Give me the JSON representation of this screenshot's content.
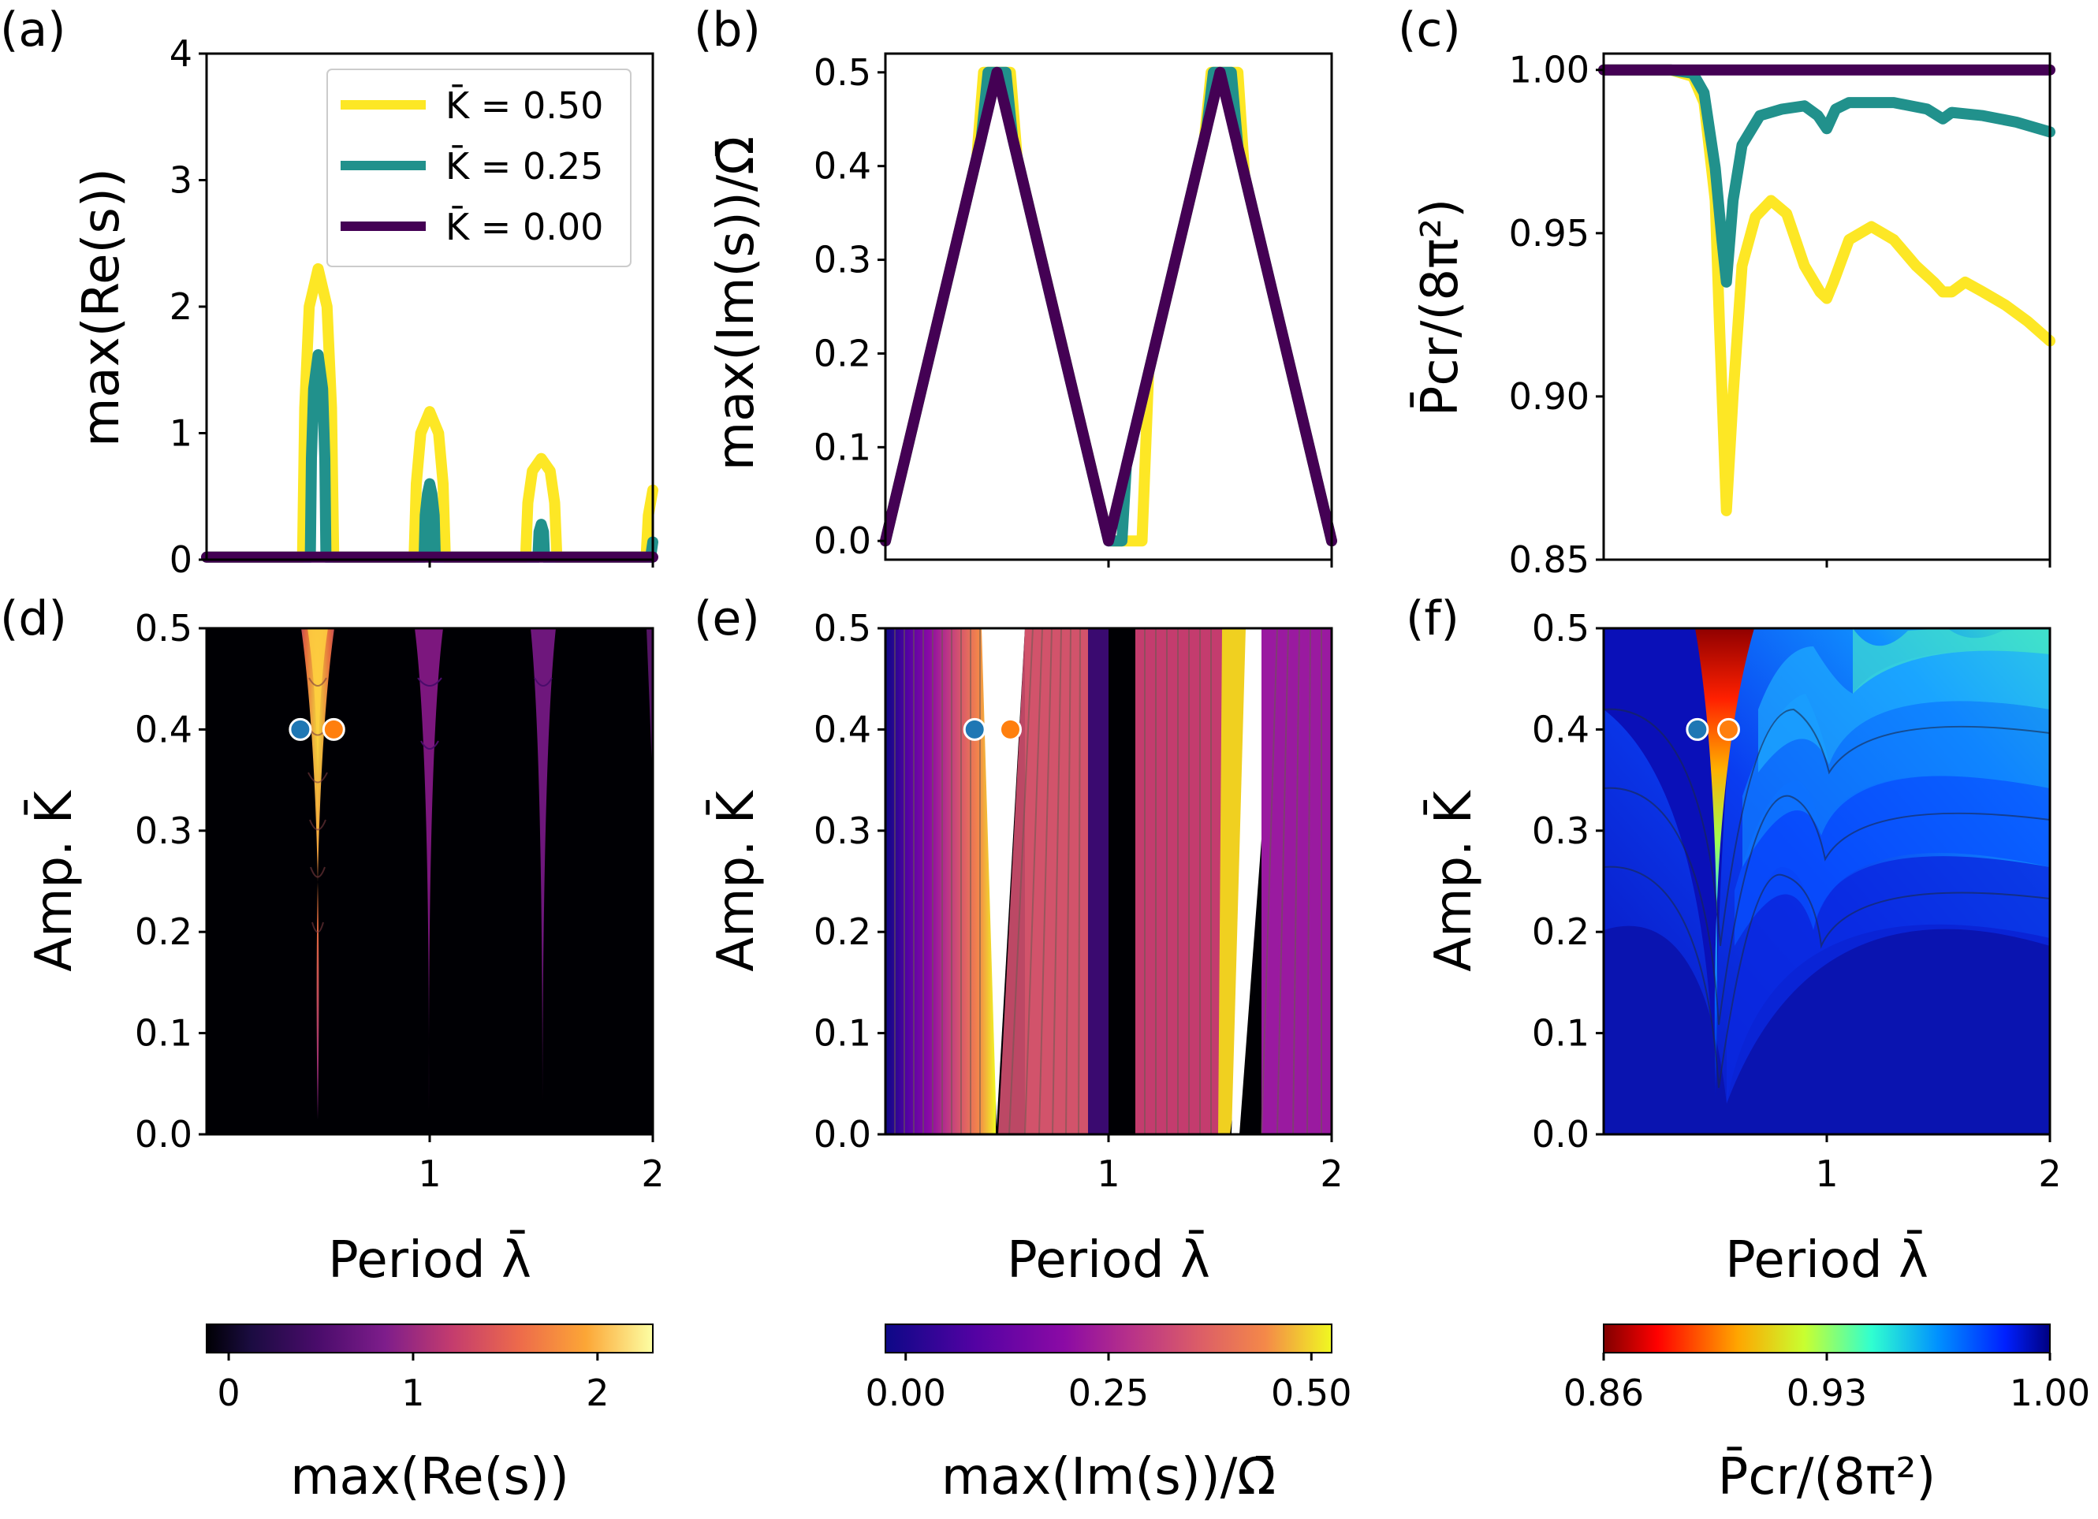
{
  "colors": {
    "yellow": "#fde725",
    "teal": "#21918c",
    "purple": "#440154",
    "point_blue": "#1f77b4",
    "point_orange": "#ff7f0e"
  },
  "panel_labels": [
    "(a)",
    "(b)",
    "(c)",
    "(d)",
    "(e)",
    "(f)"
  ],
  "chart_data": [
    {
      "panel": "(a)",
      "type": "line",
      "ylabel": "max(Re(s))",
      "xlim": [
        0,
        2
      ],
      "ylim": [
        0,
        4
      ],
      "yticks": [
        "0",
        "1",
        "2",
        "3",
        "4"
      ],
      "legend": {
        "placement": "top-right",
        "entries": [
          "K̄ = 0.50",
          "K̄ = 0.25",
          "K̄ = 0.00"
        ]
      },
      "series": [
        {
          "name": "K̄ = 0.50",
          "color": "#fde725",
          "x": [
            0.0,
            0.43,
            0.44,
            0.46,
            0.5,
            0.54,
            0.56,
            0.57,
            0.93,
            0.94,
            0.96,
            1.0,
            1.04,
            1.06,
            1.07,
            1.43,
            1.44,
            1.46,
            1.5,
            1.54,
            1.56,
            1.57,
            1.97,
            1.98,
            2.0
          ],
          "y": [
            0.02,
            0.02,
            1.2,
            2.0,
            2.3,
            2.0,
            1.2,
            0.02,
            0.02,
            0.6,
            1.0,
            1.17,
            1.0,
            0.6,
            0.02,
            0.02,
            0.45,
            0.7,
            0.8,
            0.7,
            0.45,
            0.02,
            0.02,
            0.35,
            0.55
          ]
        },
        {
          "name": "K̄ = 0.25",
          "color": "#21918c",
          "x": [
            0.0,
            0.465,
            0.47,
            0.48,
            0.5,
            0.52,
            0.53,
            0.535,
            0.975,
            0.98,
            0.99,
            1.0,
            1.01,
            1.02,
            1.025,
            1.485,
            1.49,
            1.5,
            1.51,
            1.515,
            1.99,
            2.0
          ],
          "y": [
            0.02,
            0.02,
            0.8,
            1.35,
            1.62,
            1.35,
            0.8,
            0.02,
            0.02,
            0.35,
            0.52,
            0.6,
            0.52,
            0.35,
            0.02,
            0.02,
            0.22,
            0.28,
            0.22,
            0.02,
            0.02,
            0.14
          ]
        },
        {
          "name": "K̄ = 0.00",
          "color": "#440154",
          "x": [
            0.0,
            2.0
          ],
          "y": [
            0.02,
            0.02
          ]
        }
      ]
    },
    {
      "panel": "(b)",
      "type": "line",
      "ylabel": "max(Im(s))/Ω̄",
      "xlim": [
        0,
        2
      ],
      "ylim": [
        -0.02,
        0.52
      ],
      "yticks": [
        "0.0",
        "0.1",
        "0.2",
        "0.3",
        "0.4",
        "0.5"
      ],
      "series": [
        {
          "name": "K̄ = 0.50",
          "color": "#fde725",
          "x": [
            0.0,
            0.41,
            0.44,
            0.56,
            0.59,
            0.99,
            1.02,
            1.15,
            1.18,
            1.43,
            1.46,
            1.58,
            1.61,
            2.0
          ],
          "y": [
            0.0,
            0.41,
            0.5,
            0.5,
            0.41,
            0.01,
            0.0,
            0.0,
            0.18,
            0.43,
            0.5,
            0.5,
            0.39,
            0.0
          ]
        },
        {
          "name": "K̄ = 0.25",
          "color": "#21918c",
          "x": [
            0.0,
            0.43,
            0.46,
            0.54,
            0.57,
            0.98,
            1.0,
            1.06,
            1.08,
            1.44,
            1.47,
            1.55,
            1.58,
            2.0
          ],
          "y": [
            0.0,
            0.43,
            0.5,
            0.5,
            0.43,
            0.02,
            0.0,
            0.0,
            0.08,
            0.44,
            0.5,
            0.5,
            0.42,
            0.0
          ]
        },
        {
          "name": "K̄ = 0.00",
          "color": "#440154",
          "x": [
            0.0,
            0.5,
            1.0,
            1.5,
            2.0
          ],
          "y": [
            0.0,
            0.5,
            0.0,
            0.5,
            0.0
          ]
        }
      ]
    },
    {
      "panel": "(c)",
      "type": "line",
      "ylabel": "P̄cr/(8π²)",
      "xlim": [
        0,
        2
      ],
      "ylim": [
        0.85,
        1.005
      ],
      "yticks": [
        "0.85",
        "0.90",
        "0.95",
        "1.00"
      ],
      "series": [
        {
          "name": "K̄ = 0.50",
          "color": "#fde725",
          "x": [
            0.0,
            0.3,
            0.4,
            0.45,
            0.5,
            0.52,
            0.55,
            0.58,
            0.62,
            0.68,
            0.75,
            0.82,
            0.9,
            0.97,
            1.0,
            1.03,
            1.1,
            1.2,
            1.3,
            1.4,
            1.48,
            1.52,
            1.56,
            1.62,
            1.7,
            1.8,
            1.9,
            2.0
          ],
          "y": [
            1.0,
            1.0,
            0.998,
            0.99,
            0.96,
            0.92,
            0.865,
            0.9,
            0.94,
            0.955,
            0.96,
            0.956,
            0.94,
            0.932,
            0.93,
            0.935,
            0.948,
            0.952,
            0.948,
            0.94,
            0.935,
            0.932,
            0.932,
            0.935,
            0.932,
            0.928,
            0.923,
            0.917
          ]
        },
        {
          "name": "K̄ = 0.25",
          "color": "#21918c",
          "x": [
            0.0,
            0.3,
            0.4,
            0.45,
            0.5,
            0.53,
            0.55,
            0.58,
            0.62,
            0.7,
            0.8,
            0.9,
            0.96,
            1.0,
            1.04,
            1.1,
            1.3,
            1.45,
            1.52,
            1.56,
            1.7,
            1.85,
            2.0
          ],
          "y": [
            1.0,
            1.0,
            0.999,
            0.993,
            0.97,
            0.948,
            0.935,
            0.96,
            0.977,
            0.986,
            0.988,
            0.989,
            0.986,
            0.982,
            0.988,
            0.99,
            0.99,
            0.988,
            0.985,
            0.987,
            0.986,
            0.984,
            0.981
          ]
        },
        {
          "name": "K̄ = 0.00",
          "color": "#440154",
          "x": [
            0.0,
            2.0
          ],
          "y": [
            1.0,
            1.0
          ]
        }
      ]
    },
    {
      "panel": "(d)",
      "type": "heatmap",
      "xlabel": "Period λ̄",
      "ylabel": "Amp. K̄",
      "xlim": [
        0,
        2
      ],
      "ylim": [
        0,
        0.5
      ],
      "xticks": [
        "1",
        "2"
      ],
      "yticks": [
        "0.0",
        "0.1",
        "0.2",
        "0.3",
        "0.4",
        "0.5"
      ],
      "points": [
        {
          "x": 0.42,
          "y": 0.4,
          "color": "#1f77b4"
        },
        {
          "x": 0.57,
          "y": 0.4,
          "color": "#ff7f0e"
        }
      ],
      "colorbar": {
        "label": "max(Re(s))",
        "ticks": [
          "0",
          "1",
          "2"
        ],
        "tick_values": [
          0,
          1,
          2
        ],
        "range": [
          -0.12,
          2.3
        ]
      }
    },
    {
      "panel": "(e)",
      "type": "heatmap",
      "xlabel": "Period λ̄",
      "ylabel": "Amp. K̄",
      "xlim": [
        0,
        2
      ],
      "ylim": [
        0,
        0.5
      ],
      "xticks": [
        "1",
        "2"
      ],
      "yticks": [
        "0.0",
        "0.1",
        "0.2",
        "0.3",
        "0.4",
        "0.5"
      ],
      "points": [
        {
          "x": 0.4,
          "y": 0.4,
          "color": "#1f77b4"
        },
        {
          "x": 0.56,
          "y": 0.4,
          "color": "#ff7f0e"
        }
      ],
      "colorbar": {
        "label": "max(Im(s))/Ω̄",
        "ticks": [
          "0.00",
          "0.25",
          "0.50"
        ],
        "tick_values": [
          0,
          0.25,
          0.5
        ],
        "range": [
          -0.025,
          0.525
        ]
      }
    },
    {
      "panel": "(f)",
      "type": "heatmap",
      "xlabel": "Period λ̄",
      "ylabel": "Amp. K̄",
      "xlim": [
        0,
        2
      ],
      "ylim": [
        0,
        0.5
      ],
      "xticks": [
        "1",
        "2"
      ],
      "yticks": [
        "0.0",
        "0.1",
        "0.2",
        "0.3",
        "0.4",
        "0.5"
      ],
      "points": [
        {
          "x": 0.42,
          "y": 0.4,
          "color": "#1f77b4"
        },
        {
          "x": 0.56,
          "y": 0.4,
          "color": "#ff7f0e"
        }
      ],
      "colorbar": {
        "label": "P̄cr/(8π²)",
        "ticks": [
          "0.86",
          "0.93",
          "1.00"
        ],
        "tick_values": [
          0.86,
          0.93,
          1.0
        ],
        "range": [
          0.86,
          1.0
        ]
      }
    }
  ]
}
